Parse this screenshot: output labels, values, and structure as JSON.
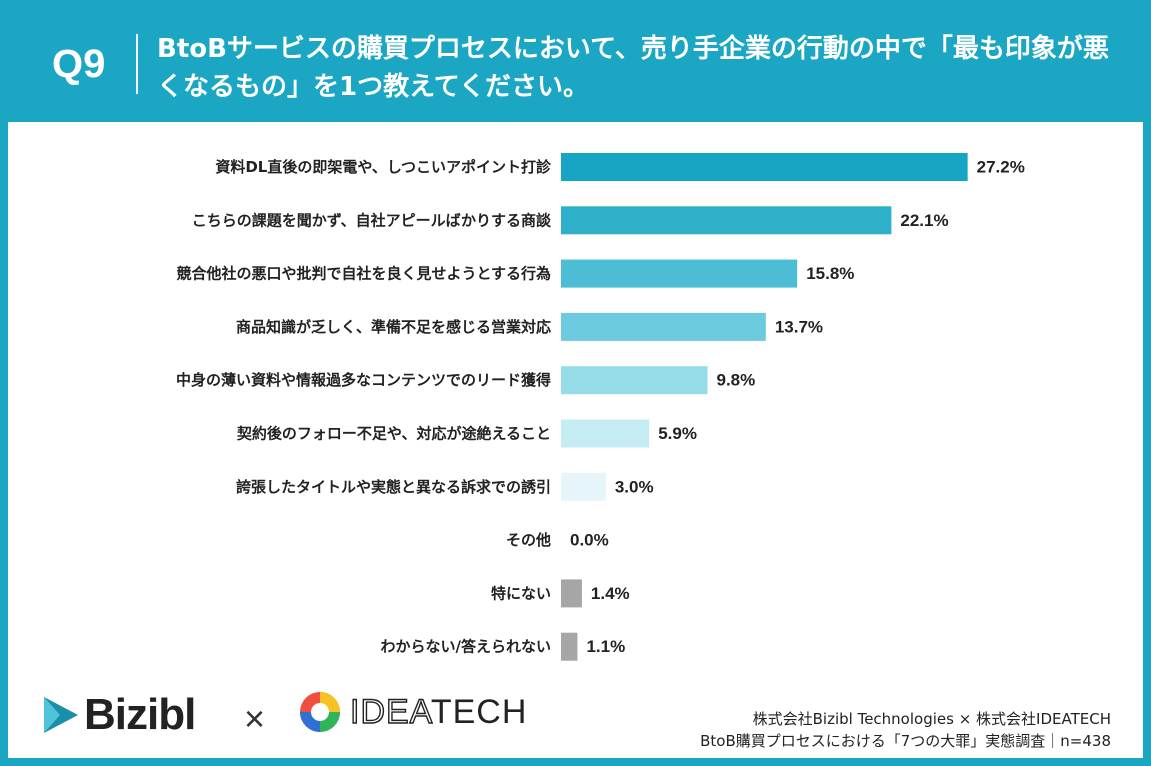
{
  "header": {
    "question_number": "Q9",
    "title": "BtoBサービスの購買プロセスにおいて、売り手企業の行動の中で「最も印象が悪くなるもの」を1つ教えてください。"
  },
  "chart_data": {
    "type": "bar",
    "orientation": "horizontal",
    "unit": "%",
    "categories": [
      "資料DL直後の即架電や、しつこいアポイント打診",
      "こちらの課題を聞かず、自社アピールばかりする商談",
      "競合他社の悪口や批判で自社を良く見せようとする行為",
      "商品知識が乏しく、準備不足を感じる営業対応",
      "中身の薄い資料や情報過多なコンテンツでのリード獲得",
      "契約後のフォロー不足や、対応が途絶えること",
      "誇張したタイトルや実態と異なる訴求での誘引",
      "その他",
      "特にない",
      "わからない/答えられない"
    ],
    "values": [
      27.2,
      22.1,
      15.8,
      13.7,
      9.8,
      5.9,
      3.0,
      0.0,
      1.4,
      1.1
    ],
    "labels": [
      "27.2%",
      "22.1%",
      "15.8%",
      "13.7%",
      "9.8%",
      "5.9%",
      "3.0%",
      "0.0%",
      "1.4%",
      "1.1%"
    ],
    "colors": [
      "#16a5c2",
      "#2fb0ca",
      "#4cbdd4",
      "#6ccbde",
      "#96dbe8",
      "#c5ebf3",
      "#e6f5f9",
      "#e6f5f9",
      "#a6a6a6",
      "#a6a6a6"
    ],
    "xlim": [
      0,
      28
    ],
    "title": "",
    "xlabel": "",
    "ylabel": ""
  },
  "footer": {
    "brand1": "Bizibl",
    "times": "×",
    "brand2_outline": "IDEA",
    "brand2_solid": "TECH",
    "credit_line1": "株式会社Bizibl Technologies × 株式会社IDEATECH",
    "credit_line2": "BtoB購買プロセスにおける「7つの大罪」実態調査｜n=438"
  }
}
